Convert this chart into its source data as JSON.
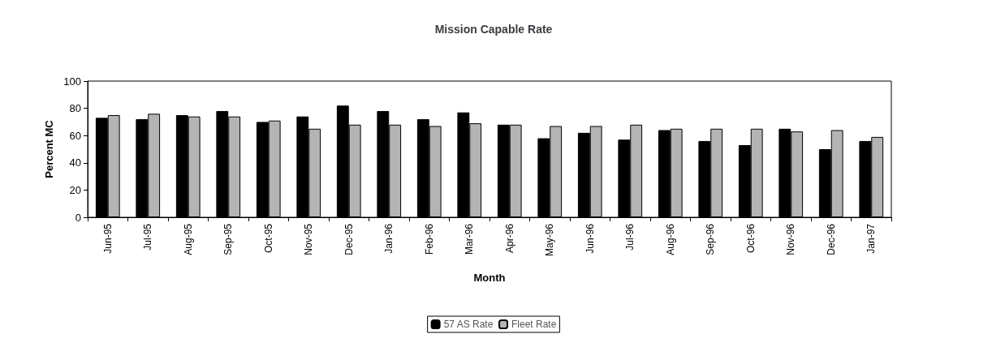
{
  "chart_data": {
    "type": "bar",
    "title": "Mission Capable Rate",
    "xlabel": "Month",
    "ylabel": "Percent MC",
    "categories": [
      "Jun-95",
      "Jul-95",
      "Aug-95",
      "Sep-95",
      "Oct-95",
      "Nov-95",
      "Dec-95",
      "Jan-96",
      "Feb-96",
      "Mar-96",
      "Apr-96",
      "May-96",
      "Jun-96",
      "Jul-96",
      "Aug-96",
      "Sep-96",
      "Oct-96",
      "Nov-96",
      "Dec-96",
      "Jan-97"
    ],
    "series": [
      {
        "name": "57 AS Rate",
        "color": "#000000",
        "values": [
          73,
          72,
          75,
          78,
          70,
          74,
          82,
          78,
          72,
          77,
          68,
          58,
          62,
          57,
          64,
          56,
          53,
          65,
          50,
          56
        ]
      },
      {
        "name": "Fleet Rate",
        "color": "#b4b4b4",
        "values": [
          75,
          76,
          74,
          74,
          71,
          65,
          68,
          68,
          67,
          69,
          68,
          67,
          67,
          68,
          65,
          65,
          65,
          63,
          64,
          59
        ]
      }
    ],
    "ylim": [
      0,
      100
    ],
    "yticks": [
      0,
      20,
      40,
      60,
      80,
      100
    ],
    "grid": false,
    "legend": "bottom"
  }
}
